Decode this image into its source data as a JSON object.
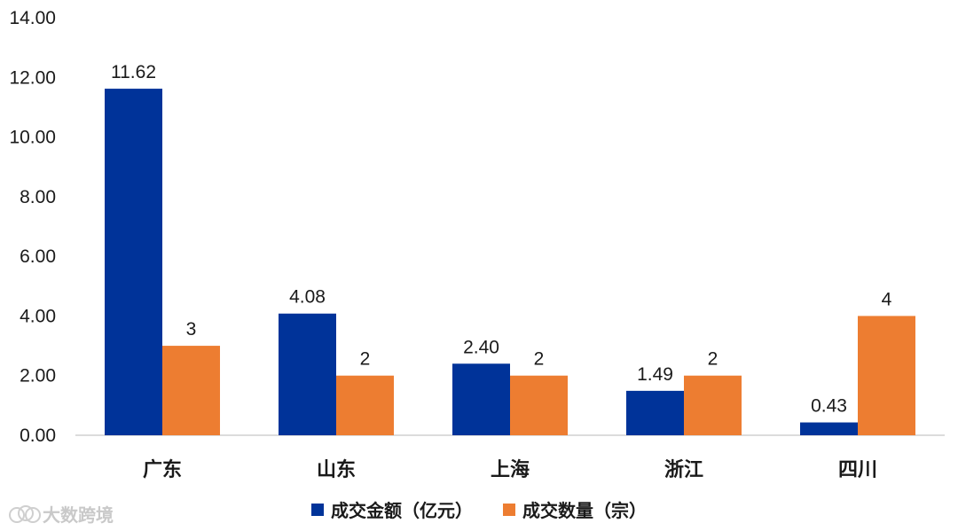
{
  "chart_data": {
    "type": "bar",
    "categories": [
      "广东",
      "山东",
      "上海",
      "浙江",
      "四川"
    ],
    "series": [
      {
        "name": "成交金额（亿元）",
        "color": "#003399",
        "values": [
          11.62,
          4.08,
          2.4,
          1.49,
          0.43
        ],
        "labels": [
          "11.62",
          "4.08",
          "2.40",
          "1.49",
          "0.43"
        ]
      },
      {
        "name": "成交数量（宗）",
        "color": "#ED7D31",
        "values": [
          3,
          2,
          2,
          2,
          4
        ],
        "labels": [
          "3",
          "2",
          "2",
          "2",
          "4"
        ]
      }
    ],
    "ylim": [
      0,
      14
    ],
    "yticks": [
      "0.00",
      "2.00",
      "4.00",
      "6.00",
      "8.00",
      "10.00",
      "12.00",
      "14.00"
    ],
    "grid": false,
    "legend_position": "bottom"
  },
  "watermark": {
    "text": "大数跨境",
    "icon": "logo-circles-icon"
  }
}
